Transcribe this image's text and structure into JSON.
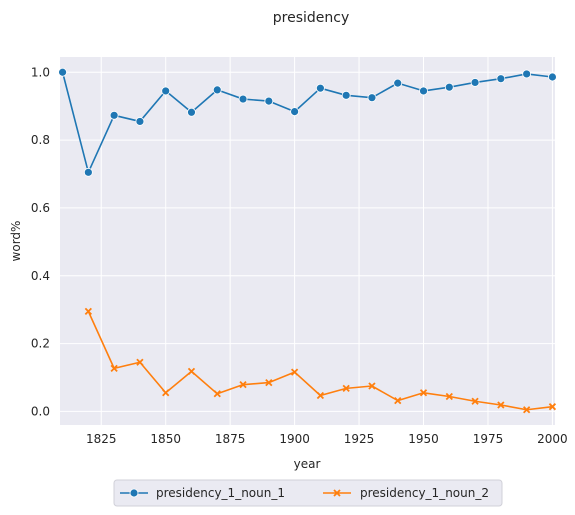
{
  "chart_data": {
    "type": "line",
    "title": "presidency",
    "xlabel": "year",
    "ylabel": "word%",
    "xlim": [
      1809,
      2001
    ],
    "ylim": [
      -0.04,
      1.045
    ],
    "x_ticks": [
      1825,
      1850,
      1875,
      1900,
      1925,
      1950,
      1975,
      2000
    ],
    "y_ticks": [
      0.0,
      0.2,
      0.4,
      0.6,
      0.8,
      1.0
    ],
    "y_tick_labels": [
      "0.0",
      "0.2",
      "0.4",
      "0.6",
      "0.8",
      "1.0"
    ],
    "grid": true,
    "legend_position": "bottom-center",
    "colors": {
      "background": "#eaeaf2",
      "grid": "#ffffff",
      "series_1": "#1f77b4",
      "series_2": "#ff7f0e"
    },
    "series": [
      {
        "name": "presidency_1_noun_1",
        "marker": "circle",
        "x": [
          1810,
          1820,
          1830,
          1840,
          1850,
          1860,
          1870,
          1880,
          1890,
          1900,
          1910,
          1920,
          1930,
          1940,
          1950,
          1960,
          1970,
          1980,
          1990,
          2000
        ],
        "values": [
          1.0,
          0.705,
          0.873,
          0.855,
          0.945,
          0.882,
          0.948,
          0.921,
          0.915,
          0.884,
          0.953,
          0.932,
          0.925,
          0.968,
          0.945,
          0.956,
          0.97,
          0.981,
          0.995,
          0.986
        ]
      },
      {
        "name": "presidency_1_noun_2",
        "marker": "x",
        "x": [
          1820,
          1830,
          1840,
          1850,
          1860,
          1870,
          1880,
          1890,
          1900,
          1910,
          1920,
          1930,
          1940,
          1950,
          1960,
          1970,
          1980,
          1990,
          2000
        ],
        "values": [
          0.295,
          0.127,
          0.145,
          0.055,
          0.118,
          0.052,
          0.079,
          0.085,
          0.116,
          0.047,
          0.068,
          0.075,
          0.032,
          0.055,
          0.044,
          0.03,
          0.019,
          0.005,
          0.014
        ]
      }
    ]
  }
}
